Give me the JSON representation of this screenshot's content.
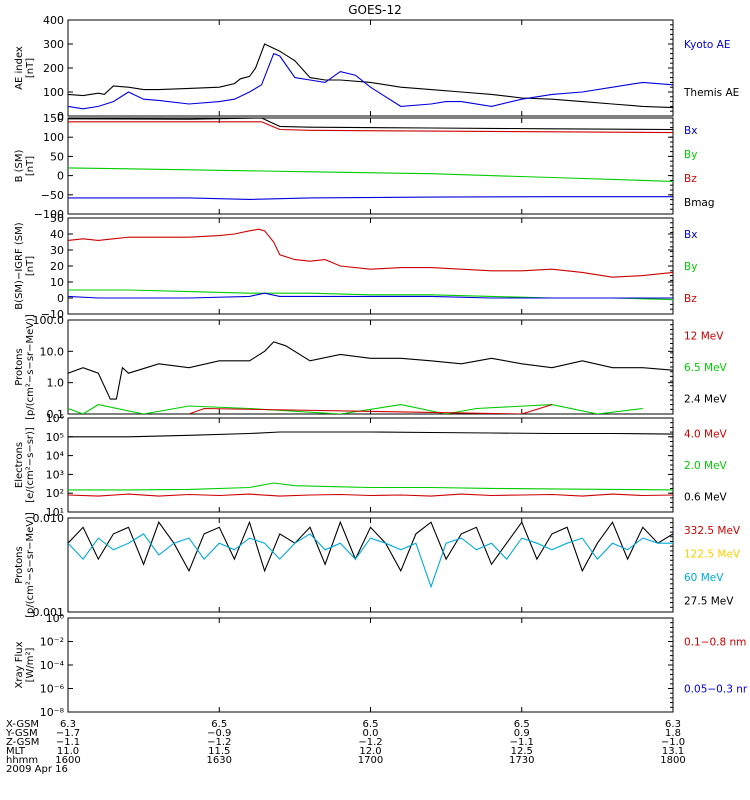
{
  "title": "GOES-12",
  "colors": {
    "black": "#000000",
    "red": "#cc0000",
    "green": "#00cc00",
    "blue": "#0000dd",
    "cyan": "#00aadd",
    "yellow": "#ffcc00"
  },
  "chart_data": [
    {
      "type": "line",
      "panel": "ae",
      "ylabel": "AE index\n[nT]",
      "yticks": [
        "400",
        "300",
        "200",
        "100",
        "0"
      ],
      "ylim": [
        0,
        400
      ],
      "yscale": "linear",
      "legend": [
        {
          "name": "Kyoto AE",
          "color": "blue"
        },
        {
          "name": "Themis AE",
          "color": "black"
        }
      ],
      "series": [
        {
          "name": "Themis AE",
          "color": "black",
          "x": [
            1600,
            1605,
            1610,
            1612,
            1615,
            1620,
            1625,
            1630,
            1640,
            1650,
            1655,
            1657,
            1660,
            1662,
            1665,
            1670,
            1675,
            1680,
            1685,
            1690,
            1700,
            1710,
            1720,
            1730,
            1740,
            1750,
            1760,
            1770,
            1780,
            1790,
            1800
          ],
          "y": [
            90,
            85,
            95,
            90,
            125,
            120,
            110,
            110,
            115,
            120,
            135,
            155,
            165,
            200,
            300,
            270,
            230,
            160,
            150,
            150,
            140,
            120,
            110,
            100,
            90,
            75,
            70,
            60,
            50,
            40,
            35
          ]
        },
        {
          "name": "Kyoto AE",
          "color": "blue",
          "x": [
            1600,
            1605,
            1610,
            1615,
            1620,
            1625,
            1630,
            1640,
            1650,
            1655,
            1660,
            1664,
            1668,
            1670,
            1675,
            1680,
            1685,
            1690,
            1695,
            1700,
            1710,
            1720,
            1725,
            1730,
            1740,
            1750,
            1760,
            1770,
            1780,
            1790,
            1800
          ],
          "y": [
            40,
            30,
            40,
            60,
            100,
            70,
            65,
            50,
            60,
            70,
            100,
            130,
            260,
            250,
            160,
            150,
            140,
            185,
            170,
            120,
            40,
            50,
            60,
            60,
            40,
            70,
            90,
            100,
            120,
            140,
            130
          ]
        }
      ]
    },
    {
      "type": "line",
      "panel": "b",
      "ylabel": "B (SM)\n[nT]",
      "yticks": [
        "150",
        "100",
        "50",
        "0",
        "−50",
        "−100"
      ],
      "ylim": [
        -100,
        150
      ],
      "yscale": "linear",
      "legend": [
        {
          "name": "Bx",
          "color": "blue"
        },
        {
          "name": "By",
          "color": "green"
        },
        {
          "name": "Bz",
          "color": "red"
        },
        {
          "name": "Bmag",
          "color": "black"
        }
      ],
      "series": [
        {
          "name": "Bmag",
          "color": "black",
          "x": [
            1600,
            1640,
            1664,
            1670,
            1680,
            1720,
            1760,
            1800
          ],
          "y": [
            148,
            147,
            150,
            128,
            126,
            124,
            122,
            120
          ]
        },
        {
          "name": "Bz",
          "color": "red",
          "x": [
            1600,
            1640,
            1664,
            1670,
            1680,
            1720,
            1760,
            1800
          ],
          "y": [
            140,
            140,
            140,
            120,
            118,
            116,
            114,
            112
          ]
        },
        {
          "name": "By",
          "color": "green",
          "x": [
            1600,
            1640,
            1680,
            1720,
            1760,
            1800
          ],
          "y": [
            20,
            15,
            10,
            5,
            -5,
            -15
          ]
        },
        {
          "name": "Bx",
          "color": "blue",
          "x": [
            1600,
            1640,
            1660,
            1680,
            1720,
            1760,
            1800
          ],
          "y": [
            -58,
            -58,
            -62,
            -58,
            -56,
            -55,
            -55
          ]
        }
      ]
    },
    {
      "type": "line",
      "panel": "dB",
      "ylabel": "B(SM)−IGRF (SM)\n[nT]",
      "yticks": [
        "50",
        "40",
        "30",
        "20",
        "10",
        "0",
        "−10"
      ],
      "ylim": [
        -10,
        50
      ],
      "yscale": "linear",
      "legend": [
        {
          "name": "Bx",
          "color": "blue"
        },
        {
          "name": "By",
          "color": "green"
        },
        {
          "name": "Bz",
          "color": "red"
        }
      ],
      "series": [
        {
          "name": "Bz",
          "color": "red",
          "x": [
            1600,
            1605,
            1610,
            1615,
            1620,
            1630,
            1640,
            1650,
            1655,
            1660,
            1663,
            1665,
            1668,
            1670,
            1675,
            1680,
            1685,
            1690,
            1700,
            1710,
            1720,
            1730,
            1740,
            1750,
            1760,
            1770,
            1780,
            1790,
            1800
          ],
          "y": [
            36,
            37,
            36,
            37,
            38,
            38,
            38,
            39,
            40,
            42,
            43,
            42,
            35,
            27,
            24,
            23,
            24,
            20,
            18,
            19,
            19,
            18,
            17,
            17,
            18,
            16,
            13,
            14,
            16
          ]
        },
        {
          "name": "By",
          "color": "green",
          "x": [
            1600,
            1620,
            1640,
            1660,
            1680,
            1700,
            1720,
            1740,
            1760,
            1780,
            1800
          ],
          "y": [
            5,
            5,
            4,
            3,
            3,
            2,
            2,
            1,
            0,
            0,
            -1
          ]
        },
        {
          "name": "Bx",
          "color": "blue",
          "x": [
            1600,
            1610,
            1620,
            1640,
            1660,
            1665,
            1670,
            1680,
            1700,
            1720,
            1740,
            1760,
            1780,
            1800
          ],
          "y": [
            1,
            0,
            0,
            0,
            1,
            3,
            1,
            1,
            1,
            1,
            0,
            0,
            0,
            0
          ]
        }
      ]
    },
    {
      "type": "line",
      "panel": "protons_hi",
      "ylabel": "Protons\n[p/(cm²−s−sr−MeV)]",
      "yticks": [
        "100.0",
        "10.0",
        "1.0",
        "0.1"
      ],
      "ylim": [
        0.1,
        100
      ],
      "yscale": "log",
      "legend": [
        {
          "name": "12 MeV",
          "color": "red"
        },
        {
          "name": "6.5 MeV",
          "color": "green"
        },
        {
          "name": "2.4 MeV",
          "color": "black"
        }
      ],
      "series": [
        {
          "name": "2.4 MeV",
          "color": "black",
          "x": [
            1600,
            1605,
            1610,
            1614,
            1616,
            1618,
            1620,
            1630,
            1640,
            1650,
            1660,
            1665,
            1668,
            1672,
            1680,
            1690,
            1700,
            1710,
            1720,
            1730,
            1740,
            1750,
            1760,
            1770,
            1780,
            1790,
            1800
          ],
          "y": [
            2,
            3,
            2,
            0.3,
            0.3,
            3,
            2,
            4,
            3,
            5,
            5,
            10,
            20,
            15,
            5,
            8,
            6,
            6,
            5,
            4,
            6,
            4,
            3,
            5,
            3,
            3,
            2.5
          ]
        },
        {
          "name": "6.5 MeV",
          "color": "green",
          "x": [
            1600,
            1605,
            1610,
            1625,
            1640,
            1660,
            1690,
            1710,
            1725,
            1735,
            1760,
            1775,
            1790
          ],
          "y": [
            0.15,
            0.1,
            0.2,
            0.1,
            0.18,
            0.15,
            0.1,
            0.2,
            0.1,
            0.15,
            0.2,
            0.1,
            0.15
          ]
        },
        {
          "name": "12 MeV",
          "color": "red",
          "x": [
            1640,
            1645,
            1750,
            1760
          ],
          "y": [
            0.1,
            0.15,
            0.1,
            0.2
          ]
        }
      ]
    },
    {
      "type": "line",
      "panel": "electrons",
      "ylabel": "Electrons\n[e/(cm²−s−sr)]",
      "yticks": [
        "10⁶",
        "10⁵",
        "10⁴",
        "10³",
        "10²",
        "10¹"
      ],
      "ylim": [
        10,
        1000000
      ],
      "yscale": "log",
      "legend": [
        {
          "name": "4.0 MeV",
          "color": "red"
        },
        {
          "name": "2.0 MeV",
          "color": "green"
        },
        {
          "name": "0.6 MeV",
          "color": "black"
        }
      ],
      "series": [
        {
          "name": "0.6 MeV",
          "color": "black",
          "x": [
            1600,
            1620,
            1640,
            1660,
            1670,
            1680,
            1700,
            1720,
            1740,
            1760,
            1780,
            1800
          ],
          "y": [
            100000,
            100000,
            120000,
            150000,
            180000,
            180000,
            180000,
            170000,
            160000,
            150000,
            150000,
            140000
          ]
        },
        {
          "name": "2.0 MeV",
          "color": "green",
          "x": [
            1600,
            1620,
            1640,
            1660,
            1668,
            1675,
            1690,
            1700,
            1720,
            1740,
            1760,
            1780,
            1800
          ],
          "y": [
            150,
            150,
            160,
            200,
            350,
            250,
            220,
            200,
            200,
            180,
            170,
            160,
            150
          ]
        },
        {
          "name": "4.0 MeV",
          "color": "red",
          "x": [
            1600,
            1610,
            1620,
            1630,
            1640,
            1650,
            1660,
            1670,
            1680,
            1690,
            1700,
            1710,
            1720,
            1730,
            1740,
            1750,
            1760,
            1770,
            1780,
            1790,
            1800
          ],
          "y": [
            80,
            70,
            90,
            70,
            85,
            75,
            90,
            70,
            80,
            85,
            75,
            80,
            70,
            90,
            75,
            80,
            85,
            70,
            90,
            75,
            80
          ]
        }
      ]
    },
    {
      "type": "line",
      "panel": "protons_lo",
      "ylabel": "Protons\n[p/(cm²−s−sr−MeV)]",
      "yticks": [
        "0.010",
        "0.001"
      ],
      "ylim": [
        0.001,
        0.06
      ],
      "yscale": "log",
      "legend": [
        {
          "name": "332.5 MeV",
          "color": "red"
        },
        {
          "name": "122.5 MeV",
          "color": "yellow"
        },
        {
          "name": "60 MeV",
          "color": "cyan"
        },
        {
          "name": "27.5 MeV",
          "color": "black"
        }
      ],
      "series": [
        {
          "name": "27.5 MeV",
          "color": "black",
          "x": [
            1600,
            1605,
            1610,
            1615,
            1620,
            1625,
            1630,
            1635,
            1640,
            1645,
            1650,
            1655,
            1660,
            1665,
            1670,
            1675,
            1680,
            1685,
            1690,
            1695,
            1700,
            1705,
            1710,
            1715,
            1720,
            1725,
            1730,
            1735,
            1740,
            1745,
            1750,
            1755,
            1760,
            1765,
            1770,
            1775,
            1780,
            1785,
            1790,
            1795,
            1800
          ],
          "y": [
            0.02,
            0.04,
            0.01,
            0.03,
            0.04,
            0.008,
            0.05,
            0.02,
            0.006,
            0.03,
            0.04,
            0.01,
            0.05,
            0.006,
            0.03,
            0.02,
            0.04,
            0.008,
            0.05,
            0.01,
            0.04,
            0.02,
            0.006,
            0.03,
            0.05,
            0.01,
            0.03,
            0.04,
            0.008,
            0.02,
            0.05,
            0.01,
            0.03,
            0.04,
            0.006,
            0.02,
            0.05,
            0.01,
            0.04,
            0.02,
            0.03
          ]
        },
        {
          "name": "60 MeV",
          "color": "cyan",
          "x": [
            1600,
            1605,
            1610,
            1615,
            1620,
            1625,
            1630,
            1635,
            1640,
            1645,
            1650,
            1655,
            1660,
            1665,
            1670,
            1675,
            1680,
            1685,
            1690,
            1695,
            1700,
            1705,
            1710,
            1715,
            1720,
            1725,
            1730,
            1735,
            1740,
            1745,
            1750,
            1755,
            1760,
            1765,
            1770,
            1775,
            1780,
            1785,
            1790,
            1795,
            1800
          ],
          "y": [
            0.02,
            0.01,
            0.025,
            0.015,
            0.02,
            0.03,
            0.012,
            0.02,
            0.025,
            0.01,
            0.02,
            0.015,
            0.025,
            0.02,
            0.01,
            0.02,
            0.03,
            0.015,
            0.02,
            0.01,
            0.025,
            0.02,
            0.015,
            0.02,
            0.003,
            0.02,
            0.025,
            0.015,
            0.02,
            0.01,
            0.025,
            0.02,
            0.015,
            0.02,
            0.025,
            0.01,
            0.02,
            0.015,
            0.025,
            0.02,
            0.02
          ]
        }
      ]
    },
    {
      "type": "line",
      "panel": "xray",
      "ylabel": "Xray Flux\n[W/m²]",
      "yticks": [
        "10⁰",
        "10⁻²",
        "10⁻⁴",
        "10⁻⁶",
        "10⁻⁸"
      ],
      "ylim": [
        1e-08,
        1
      ],
      "yscale": "log",
      "legend": [
        {
          "name": "0.1−0.8 nm",
          "color": "red"
        },
        {
          "name": "0.05−0.3 nr",
          "color": "blue"
        }
      ],
      "series": []
    }
  ],
  "xaxis": {
    "rows": [
      {
        "label": "X-GSM",
        "values": [
          "6.3",
          "6.5",
          "6.5",
          "6.5",
          "6.3"
        ]
      },
      {
        "label": "Y-GSM",
        "values": [
          "−1.7",
          "−0.9",
          "0.0",
          "0.9",
          "1.8"
        ]
      },
      {
        "label": "Z-GSM",
        "values": [
          "−1.1",
          "−1.2",
          "−1.2",
          "−1.1",
          "−1.0"
        ]
      },
      {
        "label": "MLT",
        "values": [
          "11.0",
          "11.5",
          "12.0",
          "12.5",
          "13.1"
        ]
      },
      {
        "label": "hhmm",
        "values": [
          "1600",
          "1630",
          "1700",
          "1730",
          "1800"
        ]
      }
    ],
    "date": "2009 Apr 16",
    "xlim": [
      1600,
      1800
    ]
  }
}
